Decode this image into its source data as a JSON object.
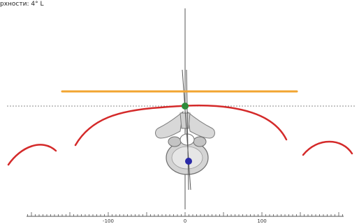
{
  "readout": {
    "text": "рхности: 4° L"
  },
  "axis": {
    "ticks": [
      {
        "value": -100,
        "label": "-100"
      },
      {
        "value": 0,
        "label": "0"
      },
      {
        "value": 100,
        "label": "100"
      }
    ]
  },
  "colors": {
    "curve": "#d42a2a",
    "reference_line": "#f2a531",
    "midpoint": "#2e8b3a",
    "centroid": "#2a2aa8",
    "axis": "#555555",
    "dashed": "#8a8a8a",
    "vertebra": "#cfcfcf"
  }
}
